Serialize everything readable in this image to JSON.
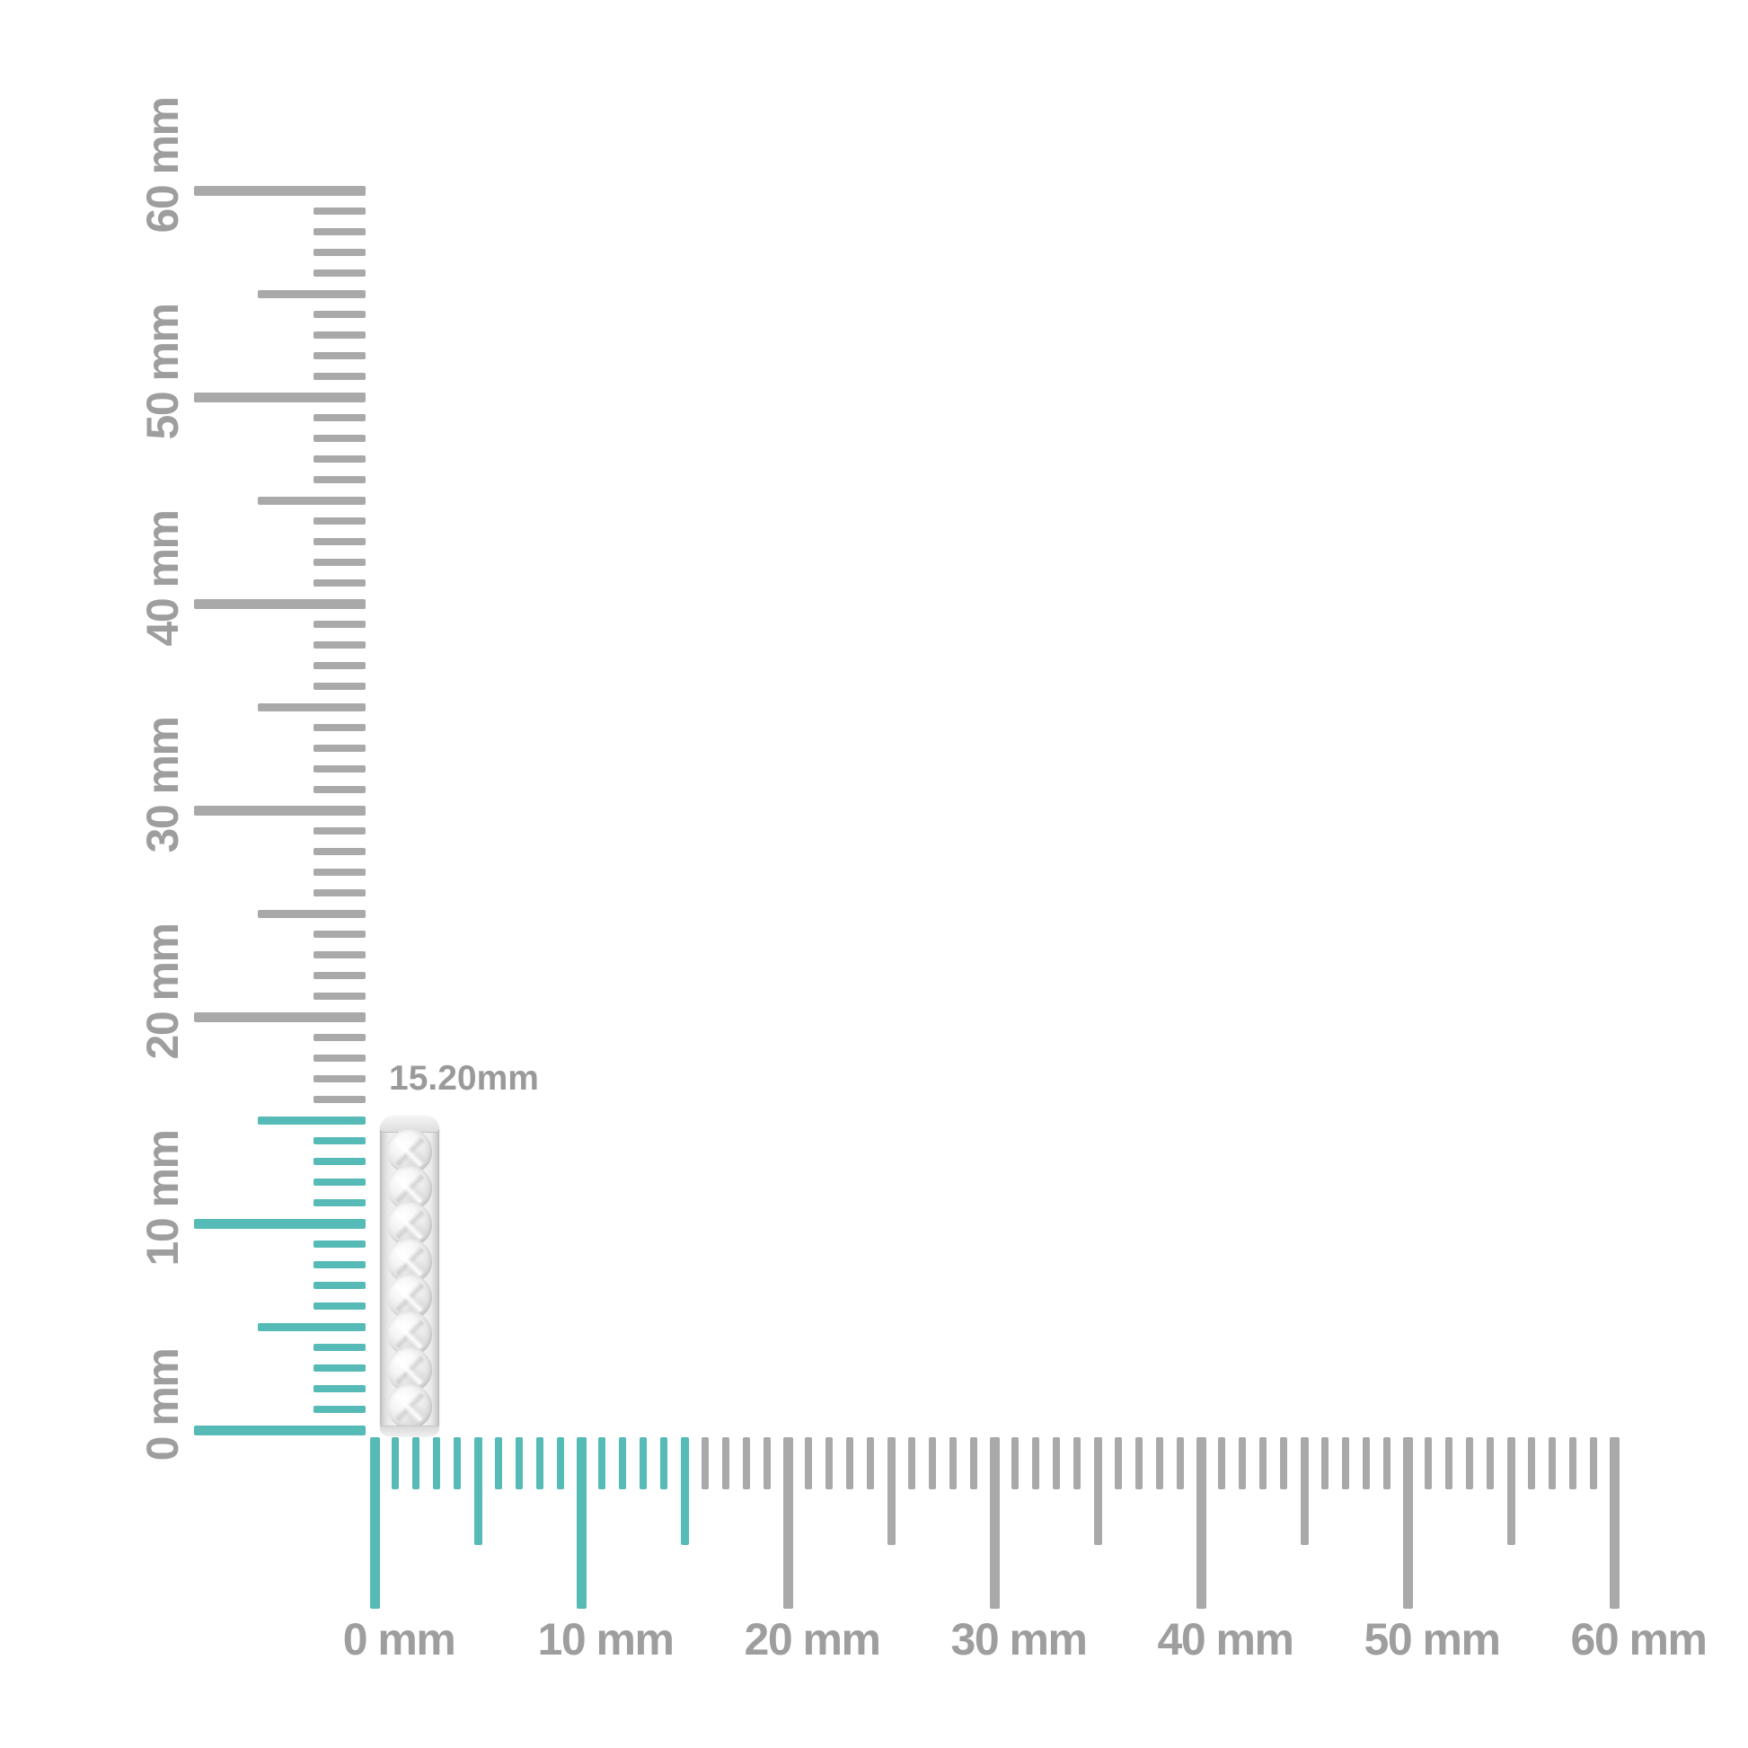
{
  "figure": {
    "background_color": "#ffffff",
    "item_name": "diamond-eternity-band-side-view",
    "measurement_label": "15.20mm",
    "measured_height_mm": 15.2,
    "stone_count": 8
  },
  "rulers": {
    "unit": "mm",
    "min_mm": 0,
    "max_mm": 60,
    "major_step_mm": 10,
    "mid_step_mm": 5,
    "minor_step_mm": 1,
    "highlight_to_mm": 15,
    "labels": [
      "0 mm",
      "10 mm",
      "20 mm",
      "30 mm",
      "40 mm",
      "50 mm",
      "60 mm"
    ],
    "colors": {
      "highlight_tick": "#56bab6",
      "tick": "#a9a9a9",
      "label_text": "#9e9e9e",
      "measurement_text": "#9a9a9a"
    }
  }
}
